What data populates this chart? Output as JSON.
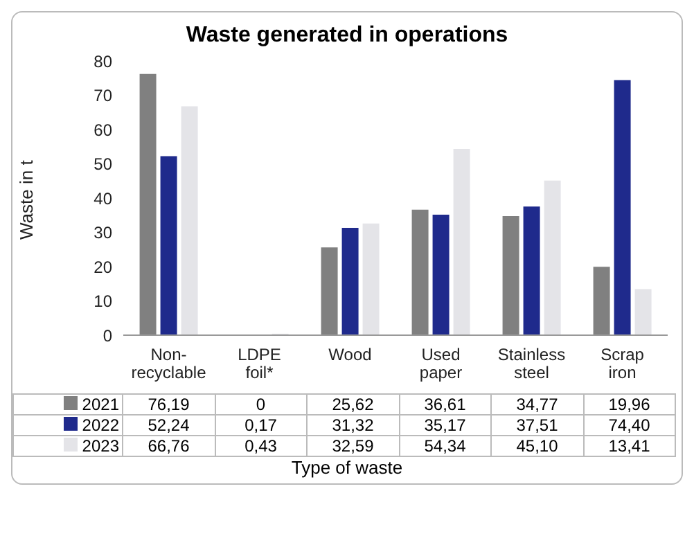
{
  "chart_data": {
    "type": "bar",
    "title": "Waste generated in operations",
    "xlabel": "Type of waste",
    "ylabel": "Waste in t",
    "categories": [
      "Non-recyclable",
      "LDPE foil*",
      "Wood",
      "Used paper",
      "Stainless steel",
      "Scrap iron"
    ],
    "series": [
      {
        "name": "2021",
        "color": "#808080",
        "values": [
          76.19,
          0,
          25.62,
          36.61,
          34.77,
          19.96
        ],
        "value_labels": [
          "76,19",
          "0",
          "25,62",
          "36,61",
          "34,77",
          "19,96"
        ]
      },
      {
        "name": "2022",
        "color": "#1f2a8c",
        "values": [
          52.24,
          0.17,
          31.32,
          35.17,
          37.51,
          74.4
        ],
        "value_labels": [
          "52,24",
          "0,17",
          "31,32",
          "35,17",
          "37,51",
          "74,40"
        ]
      },
      {
        "name": "2023",
        "color": "#e4e4e8",
        "values": [
          66.76,
          0.43,
          32.59,
          54.34,
          45.1,
          13.41
        ],
        "value_labels": [
          "66,76",
          "0,43",
          "32,59",
          "54,34",
          "45,10",
          "13,41"
        ]
      }
    ],
    "ylim": [
      0,
      80
    ],
    "yticks": [
      0,
      10,
      20,
      30,
      40,
      50,
      60,
      70,
      80
    ],
    "grid": false,
    "legend": "bottom"
  }
}
